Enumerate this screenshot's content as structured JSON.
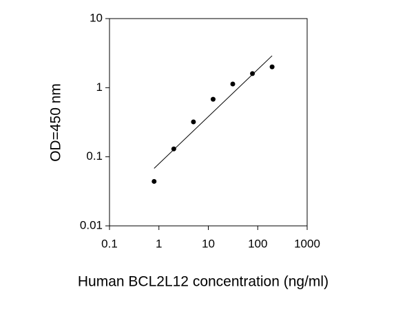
{
  "chart_data": {
    "type": "scatter",
    "xlabel": "Human BCL2L12 concentration (ng/ml)",
    "ylabel": "OD=450 nm",
    "xscale": "log",
    "yscale": "log",
    "xlim": [
      0.1,
      1000
    ],
    "xticks": [
      0.1,
      1,
      10,
      100,
      1000
    ],
    "ylim": [
      0.01,
      10
    ],
    "yticks": [
      0.01,
      0.1,
      1,
      10
    ],
    "series": [
      {
        "type": "scatter",
        "color": "#000000",
        "x": [
          0.8,
          2,
          5,
          12.5,
          31.25,
          78.13,
          195.3
        ],
        "values": [
          0.044,
          0.13,
          0.32,
          0.68,
          1.13,
          1.6,
          2.0
        ]
      },
      {
        "type": "line",
        "color": "#000000",
        "x": [
          0.8,
          195.3
        ],
        "values": [
          0.068,
          2.9
        ]
      }
    ]
  }
}
